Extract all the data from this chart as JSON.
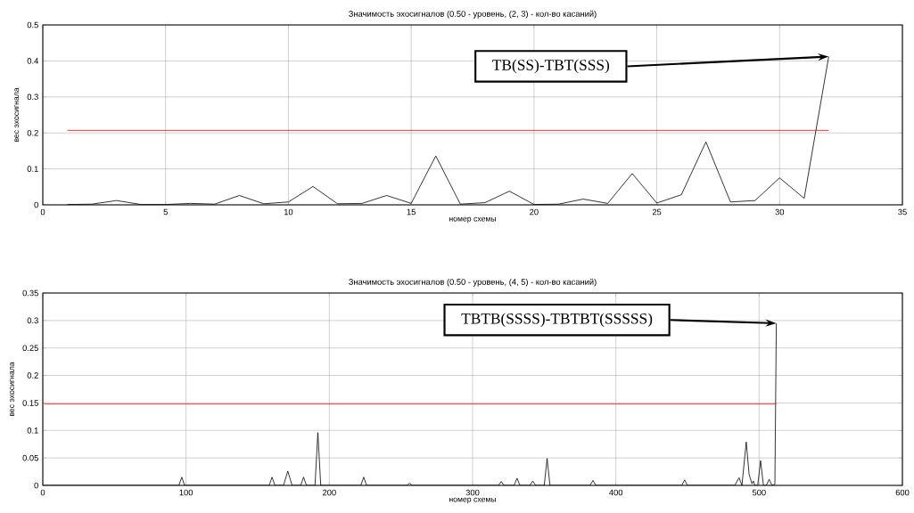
{
  "chart_data": [
    {
      "type": "line",
      "title": "Значимость эхосигналов (0.50 - уровень, (2, 3) - кол-во касаний)",
      "xlabel": "номер схемы",
      "ylabel": "вес эхосигнала",
      "xlim": [
        0,
        35
      ],
      "ylim": [
        0,
        0.5
      ],
      "xticks": [
        0,
        5,
        10,
        15,
        20,
        25,
        30,
        35
      ],
      "yticks": [
        0,
        0.1,
        0.2,
        0.3,
        0.4,
        0.5
      ],
      "grid": true,
      "marker": "none",
      "line_style": "solid",
      "series": [
        {
          "color": "#000000",
          "x": [
            1,
            2,
            3,
            4,
            5,
            6,
            7,
            8,
            9,
            10,
            11,
            12,
            13,
            14,
            15,
            16,
            17,
            18,
            19,
            20,
            21,
            22,
            23,
            24,
            25,
            26,
            27,
            28,
            29,
            30,
            31,
            32
          ],
          "values": [
            0.001,
            0.002,
            0.012,
            0.001,
            0.001,
            0.004,
            0.002,
            0.026,
            0.003,
            0.008,
            0.051,
            0.003,
            0.004,
            0.026,
            0.004,
            0.136,
            0.002,
            0.006,
            0.038,
            0.001,
            0.002,
            0.016,
            0.004,
            0.087,
            0.005,
            0.028,
            0.175,
            0.008,
            0.012,
            0.075,
            0.018,
            0.412
          ]
        },
        {
          "color": "#ff0000",
          "x": [
            1,
            32
          ],
          "values": [
            0.207,
            0.207
          ]
        }
      ],
      "annotations": [
        {
          "text": "TB(SS)-TBT(SSS)",
          "x": 32,
          "y": 0.412
        }
      ]
    },
    {
      "type": "line",
      "title": "Значимость эхосигналов (0.50 - уровень, (4, 5) - кол-во касаний)",
      "xlabel": "номер схемы",
      "ylabel": "вес эхосигнала",
      "xlim": [
        0,
        600
      ],
      "ylim": [
        0,
        0.35
      ],
      "xticks": [
        0,
        100,
        200,
        300,
        400,
        500,
        600
      ],
      "yticks": [
        0,
        0.05,
        0.1,
        0.15,
        0.2,
        0.25,
        0.3,
        0.35
      ],
      "grid": true,
      "marker": "none",
      "line_style": "solid",
      "series": [
        {
          "color": "#000000",
          "x": [
            1,
            95,
            97,
            99,
            158,
            160,
            162,
            168,
            171,
            174,
            180,
            182,
            184,
            190,
            192,
            194,
            222,
            224,
            226,
            254,
            256,
            258,
            318,
            320,
            322,
            329,
            331,
            333,
            340,
            342,
            344,
            350,
            352,
            354,
            382,
            384,
            386,
            446,
            448,
            450,
            483,
            486,
            488,
            491,
            493,
            495,
            496,
            497,
            499,
            501,
            503,
            505,
            507,
            509,
            511,
            512
          ],
          "values": [
            0,
            0,
            0.015,
            0,
            0,
            0.015,
            0,
            0,
            0.026,
            0,
            0,
            0.015,
            0,
            0,
            0.096,
            0,
            0,
            0.015,
            0,
            0,
            0.004,
            0,
            0,
            0.007,
            0,
            0,
            0.013,
            0,
            0,
            0.008,
            0,
            0,
            0.049,
            0,
            0,
            0.009,
            0,
            0,
            0.01,
            0,
            0,
            0.014,
            0,
            0.079,
            0.02,
            0.003,
            0.008,
            0,
            0,
            0.045,
            0,
            0,
            0.011,
            0,
            0.002,
            0.295
          ]
        },
        {
          "color": "#ff0000",
          "x": [
            1,
            512
          ],
          "values": [
            0.148,
            0.148
          ]
        }
      ],
      "annotations": [
        {
          "text": "TBTB(SSSS)-TBTBT(SSSSS)",
          "x": 512,
          "y": 0.295
        }
      ]
    }
  ]
}
